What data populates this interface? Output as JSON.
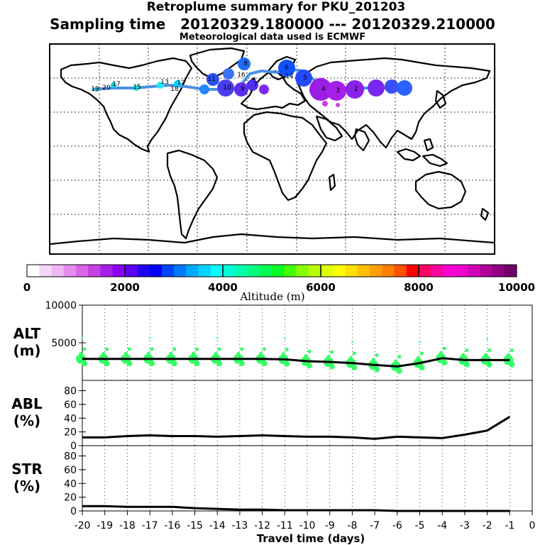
{
  "header": {
    "title": "Retroplume summary for PKU_201203",
    "sampling": "Sampling time   20120329.180000 --- 20120329.210000",
    "met": "Meteorological data used is ECMWF"
  },
  "colorbar": {
    "label": "Altitude (m)",
    "ticks": [
      "0",
      "2000",
      "4000",
      "6000",
      "8000",
      "10000"
    ],
    "colors": [
      "#ffffff",
      "#f5d6f7",
      "#efb8f3",
      "#e58cec",
      "#d966e6",
      "#c63fe0",
      "#a61fe8",
      "#8a00ff",
      "#5a00f5",
      "#2200f0",
      "#0000ff",
      "#0044ff",
      "#0077ff",
      "#00a8ff",
      "#00d4ff",
      "#00ffff",
      "#00ffd4",
      "#00ffaa",
      "#00ff80",
      "#00ff55",
      "#00ff22",
      "#44ff00",
      "#88ff00",
      "#b8ff00",
      "#e0ff00",
      "#ffff00",
      "#ffe000",
      "#ffc000",
      "#ffa000",
      "#ff8000",
      "#ff5000",
      "#ff0000",
      "#ff0066",
      "#ff00a0",
      "#ff00d4",
      "#f000cc",
      "#d000b4",
      "#b0009a",
      "#900080",
      "#700068"
    ]
  },
  "map_labels": [
    "19",
    "17",
    "15",
    "13",
    "12",
    "11",
    "10",
    "9",
    "8",
    "7",
    "6",
    "5",
    "4",
    "3",
    "2",
    "20",
    "18",
    "16",
    "14"
  ],
  "chart_data": [
    {
      "type": "line",
      "panel": "ALT",
      "ylabel": "ALT\n(m)",
      "ylabel_lines": [
        "ALT",
        "(m)"
      ],
      "yticks": [
        "10000",
        "5000"
      ],
      "ylim": [
        0,
        10000
      ],
      "x": [
        -20,
        -19,
        -18,
        -17,
        -16,
        -15,
        -14,
        -13,
        -12,
        -11,
        -10,
        -9,
        -8,
        -7,
        -6,
        -5,
        -4,
        -3,
        -2,
        -1
      ],
      "values": [
        2850,
        2850,
        2850,
        2850,
        2850,
        2850,
        2850,
        2850,
        2850,
        2800,
        2550,
        2450,
        2300,
        2050,
        1850,
        2300,
        2950,
        2700,
        2700,
        2700
      ]
    },
    {
      "type": "line",
      "panel": "ABL",
      "ylabel_lines": [
        "ABL",
        "(%)"
      ],
      "yticks": [
        "80",
        "60",
        "40",
        "20",
        "0"
      ],
      "ylim": [
        0,
        95
      ],
      "x": [
        -20,
        -19,
        -18,
        -17,
        -16,
        -15,
        -14,
        -13,
        -12,
        -11,
        -10,
        -9,
        -8,
        -7,
        -6,
        -5,
        -4,
        -3,
        -2,
        -1
      ],
      "values": [
        12,
        12,
        14,
        15,
        14,
        14,
        13,
        14,
        15,
        14,
        13,
        13,
        12,
        10,
        13,
        12,
        11,
        16,
        22,
        42
      ]
    },
    {
      "type": "line",
      "panel": "STR",
      "ylabel_lines": [
        "STR",
        "(%)"
      ],
      "yticks": [
        "80",
        "60",
        "40",
        "20",
        "0"
      ],
      "ylim": [
        0,
        95
      ],
      "x": [
        -20,
        -19,
        -18,
        -17,
        -16,
        -15,
        -14,
        -13,
        -12,
        -11,
        -10,
        -9,
        -8,
        -7,
        -6,
        -5,
        -4,
        -3,
        -2,
        -1
      ],
      "values": [
        7,
        7,
        6,
        6,
        6,
        4,
        3,
        2,
        2,
        1,
        1,
        1,
        1,
        1,
        0,
        0,
        0,
        0,
        0,
        0
      ]
    }
  ],
  "xaxis": {
    "ticks": [
      "-20",
      "-19",
      "-18",
      "-17",
      "-16",
      "-15",
      "-14",
      "-13",
      "-12",
      "-11",
      "-10",
      "-9",
      "-8",
      "-7",
      "-6",
      "-5",
      "-4",
      "-3",
      "-2",
      "-1",
      "0"
    ],
    "label": "Travel time (days)"
  }
}
